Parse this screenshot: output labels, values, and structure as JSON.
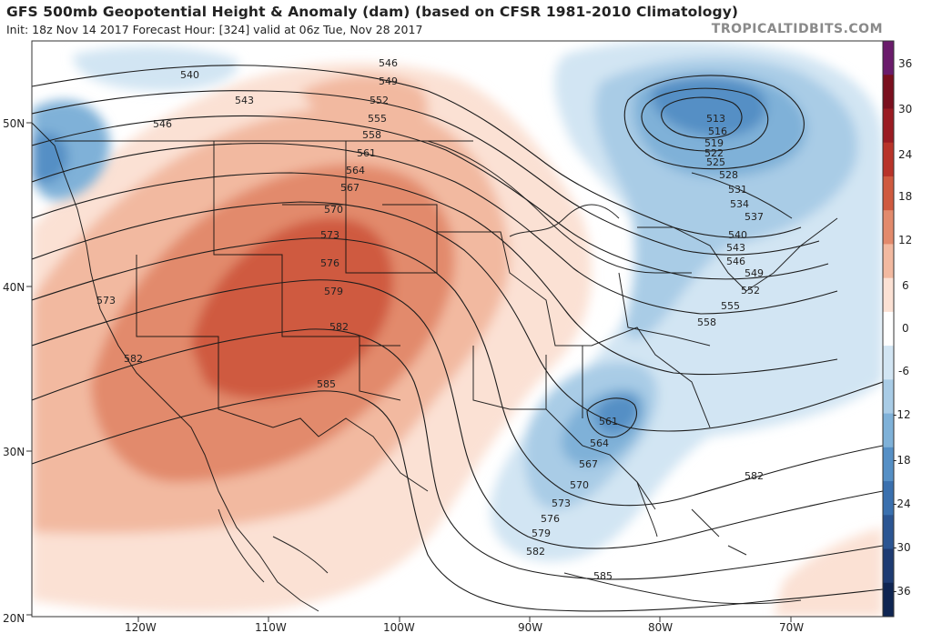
{
  "title": "GFS 500mb Geopotential Height & Anomaly (dam) (based on CFSR 1981-2010 Climatology)",
  "subtitle": "Init: 18z Nov 14 2017   Forecast Hour: [324]   valid at 06z Tue, Nov 28 2017",
  "credit": "TROPICALTIDBITS.COM",
  "lat_labels": [
    "50N",
    "40N",
    "30N",
    "20N"
  ],
  "lon_labels": [
    "120W",
    "110W",
    "100W",
    "90W",
    "80W",
    "70W"
  ],
  "colorbar": {
    "ticks": [
      "36",
      "30",
      "24",
      "18",
      "12",
      "6",
      "0",
      "-6",
      "-12",
      "-18",
      "-24",
      "-30",
      "-36"
    ],
    "colors": [
      "#6a1b6b",
      "#7a0f1e",
      "#9a1b22",
      "#b83329",
      "#cf5a3f",
      "#e28a6c",
      "#f2b9a0",
      "#fbe1d4",
      "#ffffff",
      "#d2e5f3",
      "#a9cce6",
      "#7fb1d8",
      "#558fc5",
      "#3a70ae",
      "#2b5592",
      "#1e3b72",
      "#0f2552"
    ]
  },
  "contour_labels": [
    "540",
    "543",
    "546",
    "546",
    "549",
    "552",
    "555",
    "558",
    "561",
    "564",
    "567",
    "570",
    "573",
    "576",
    "579",
    "582",
    "585",
    "573",
    "582",
    "513",
    "516",
    "519",
    "522",
    "525",
    "528",
    "531",
    "534",
    "537",
    "540",
    "543",
    "546",
    "549",
    "552",
    "555",
    "558",
    "561",
    "564",
    "567",
    "570",
    "573",
    "576",
    "579",
    "582",
    "585",
    "582"
  ]
}
